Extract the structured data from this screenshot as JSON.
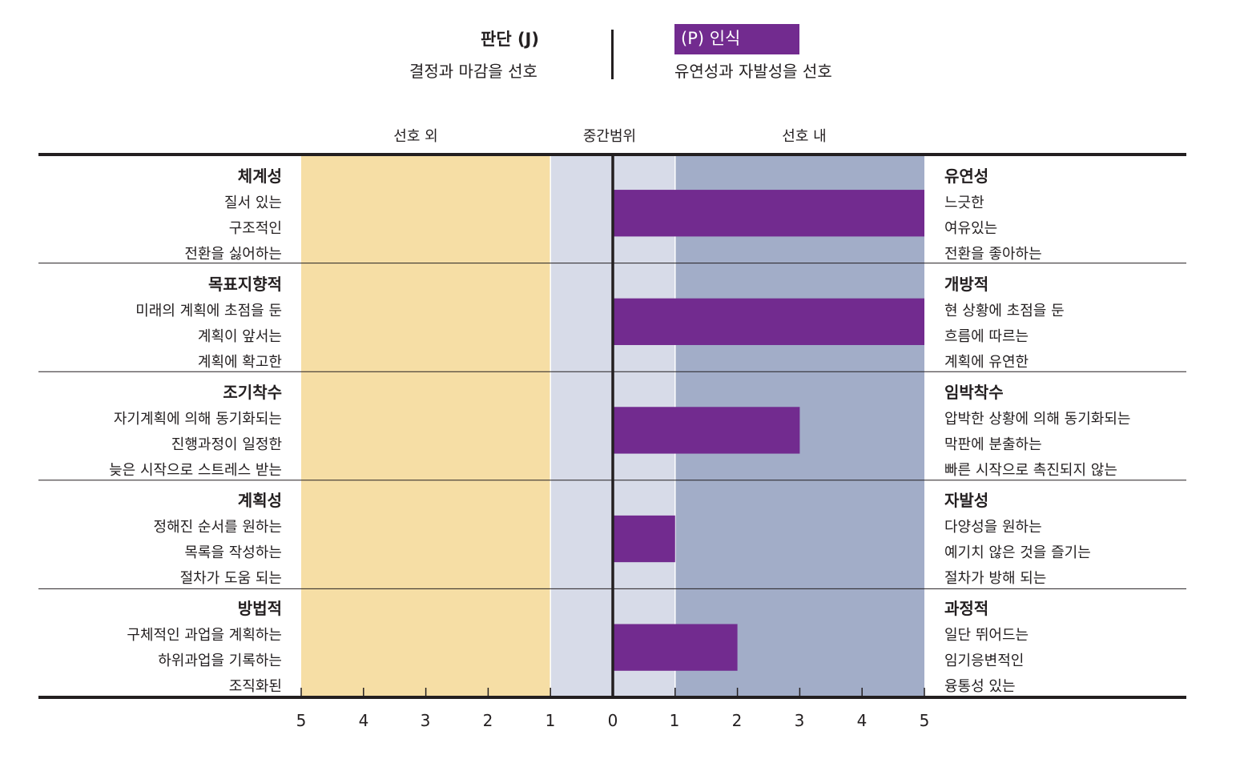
{
  "header": {
    "left_title": "판단 (J)",
    "left_subtitle": "결정과 마감을 선호",
    "right_title": "(P) 인식",
    "right_subtitle": "유연성과 자발성을 선호"
  },
  "zones": {
    "out_label": "선호 외",
    "mid_label": "중간범위",
    "in_label": "선호 내"
  },
  "colors": {
    "bar": "#722b8f",
    "out_zone": "#f6dea5",
    "mid_zone": "#d7dbe8",
    "in_zone": "#a2adc8",
    "axis": "#231f20"
  },
  "chart_data": {
    "type": "bar",
    "orientation": "horizontal",
    "direction": "right (P)",
    "xlim_left": [
      5,
      0
    ],
    "xlim_right": [
      0,
      5
    ],
    "tick_labels": [
      "5",
      "4",
      "3",
      "2",
      "1",
      "0",
      "1",
      "2",
      "3",
      "4",
      "5"
    ],
    "categories": [
      {
        "left_title": "체계성",
        "left_lines": [
          "질서 있는",
          "구조적인",
          "전환을 싫어하는"
        ],
        "right_title": "유연성",
        "right_lines": [
          "느긋한",
          "여유있는",
          "전환을 좋아하는"
        ],
        "value": 5
      },
      {
        "left_title": "목표지향적",
        "left_lines": [
          "미래의 계획에 초점을 둔",
          "계획이 앞서는",
          "계획에 확고한"
        ],
        "right_title": "개방적",
        "right_lines": [
          "현 상황에 초점을 둔",
          "흐름에 따르는",
          "계획에 유연한"
        ],
        "value": 5
      },
      {
        "left_title": "조기착수",
        "left_lines": [
          "자기계획에 의해 동기화되는",
          "진행과정이 일정한",
          "늦은 시작으로 스트레스 받는"
        ],
        "right_title": "임박착수",
        "right_lines": [
          "압박한 상황에 의해 동기화되는",
          "막판에 분출하는",
          "빠른 시작으로 촉진되지 않는"
        ],
        "value": 3
      },
      {
        "left_title": "계획성",
        "left_lines": [
          "정해진 순서를 원하는",
          "목록을 작성하는",
          "절차가 도움 되는"
        ],
        "right_title": "자발성",
        "right_lines": [
          "다양성을 원하는",
          "예기치 않은 것을 즐기는",
          "절차가 방해 되는"
        ],
        "value": 1
      },
      {
        "left_title": "방법적",
        "left_lines": [
          "구체적인 과업을 계획하는",
          "하위과업을 기록하는",
          "조직화된"
        ],
        "right_title": "과정적",
        "right_lines": [
          "일단 뛰어드는",
          "임기응변적인",
          "융통성 있는"
        ],
        "value": 2
      }
    ]
  }
}
